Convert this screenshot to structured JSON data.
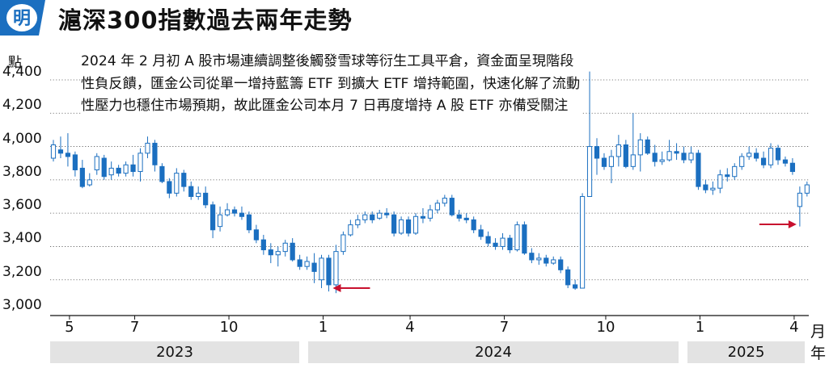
{
  "header": {
    "badge_text": "明",
    "title": "滬深300指數過去兩年走勢"
  },
  "colors": {
    "brand_blue": "#1b6fc0",
    "candle_up": "#1b6fc0",
    "candle_down_fill": "#ffffff",
    "arrow": "#c8102e",
    "year_band": "#e3e3e3"
  },
  "chart_data": {
    "type": "candlestick",
    "title": "滬深300指數過去兩年走勢",
    "ylabel": "點",
    "ylim": [
      3000,
      4500
    ],
    "yticks": [
      "3,000",
      "3,200",
      "3,400",
      "3,600",
      "3,800",
      "4,000",
      "4,200",
      "4,400"
    ],
    "grid": "horizontal-dotted",
    "x_tick_labels": [
      "5",
      "7",
      "10",
      "1",
      "4",
      "7",
      "10",
      "1",
      "4"
    ],
    "x_unit": "月",
    "year_unit": "年",
    "year_labels": [
      "2023",
      "2024",
      "2025"
    ],
    "annotation": "2024 年 2 月初 A 股市場連續調整後觸發雪球等衍生工具平倉，資金面呈現階段性負反饋，匯金公司從單一增持藍籌 ETF 到擴大 ETF 增持範圍，快速化解了流動性壓力也穩住市場預期，故此匯金公司本月 7 日再度增持 A 股 ETF 亦備受關注",
    "week_start_label": "2023-04",
    "candles": [
      [
        3930,
        4010,
        3950,
        4040,
        3910
      ],
      [
        3980,
        3960,
        4000,
        4060,
        3930
      ],
      [
        3960,
        3940,
        3960,
        4080,
        3880
      ],
      [
        3950,
        3860,
        3880,
        3970,
        3820
      ],
      [
        3870,
        3760,
        3900,
        3920,
        3750
      ],
      [
        3770,
        3800,
        3820,
        3840,
        3760
      ],
      [
        3860,
        3940,
        3880,
        3960,
        3830
      ],
      [
        3930,
        3820,
        3930,
        3950,
        3800
      ],
      [
        3830,
        3870,
        3900,
        3910,
        3800
      ],
      [
        3870,
        3840,
        3870,
        3890,
        3820
      ],
      [
        3840,
        3890,
        3900,
        3910,
        3820
      ],
      [
        3890,
        3850,
        3900,
        3950,
        3820
      ],
      [
        3850,
        3960,
        3980,
        3990,
        3790
      ],
      [
        3960,
        4020,
        4030,
        4060,
        3930
      ],
      [
        4020,
        3890,
        4020,
        4040,
        3850
      ],
      [
        3880,
        3790,
        3890,
        3900,
        3780
      ],
      [
        3790,
        3720,
        3800,
        3810,
        3690
      ],
      [
        3720,
        3840,
        3860,
        3870,
        3700
      ],
      [
        3840,
        3760,
        3850,
        3860,
        3730
      ],
      [
        3760,
        3700,
        3780,
        3790,
        3680
      ],
      [
        3700,
        3720,
        3740,
        3760,
        3680
      ],
      [
        3720,
        3650,
        3740,
        3760,
        3630
      ],
      [
        3650,
        3500,
        3660,
        3670,
        3450
      ],
      [
        3520,
        3590,
        3600,
        3640,
        3490
      ],
      [
        3590,
        3620,
        3630,
        3660,
        3580
      ],
      [
        3620,
        3600,
        3630,
        3640,
        3580
      ],
      [
        3600,
        3580,
        3620,
        3640,
        3560
      ],
      [
        3590,
        3500,
        3600,
        3610,
        3480
      ],
      [
        3500,
        3440,
        3510,
        3530,
        3420
      ],
      [
        3440,
        3380,
        3460,
        3470,
        3350
      ],
      [
        3380,
        3350,
        3400,
        3420,
        3300
      ],
      [
        3350,
        3370,
        3380,
        3400,
        3280
      ],
      [
        3370,
        3420,
        3430,
        3440,
        3340
      ],
      [
        3420,
        3320,
        3430,
        3450,
        3310
      ],
      [
        3320,
        3280,
        3340,
        3350,
        3260
      ],
      [
        3280,
        3310,
        3320,
        3340,
        3260
      ],
      [
        3300,
        3250,
        3350,
        3360,
        3180
      ],
      [
        3200,
        3330,
        3330,
        3350,
        3150
      ],
      [
        3330,
        3170,
        3340,
        3350,
        3130
      ],
      [
        3170,
        3370,
        3390,
        3410,
        3120
      ],
      [
        3370,
        3470,
        3470,
        3490,
        3350
      ],
      [
        3470,
        3530,
        3540,
        3560,
        3460
      ],
      [
        3530,
        3560,
        3570,
        3590,
        3510
      ],
      [
        3560,
        3590,
        3600,
        3610,
        3540
      ],
      [
        3590,
        3560,
        3600,
        3610,
        3540
      ],
      [
        3570,
        3600,
        3600,
        3620,
        3560
      ],
      [
        3600,
        3590,
        3610,
        3630,
        3570
      ],
      [
        3590,
        3480,
        3600,
        3610,
        3460
      ],
      [
        3480,
        3560,
        3560,
        3580,
        3470
      ],
      [
        3560,
        3480,
        3570,
        3580,
        3460
      ],
      [
        3480,
        3580,
        3590,
        3600,
        3470
      ],
      [
        3580,
        3570,
        3610,
        3630,
        3540
      ],
      [
        3570,
        3620,
        3630,
        3650,
        3550
      ],
      [
        3620,
        3660,
        3670,
        3680,
        3600
      ],
      [
        3660,
        3690,
        3700,
        3710,
        3640
      ],
      [
        3690,
        3590,
        3700,
        3710,
        3580
      ],
      [
        3590,
        3570,
        3610,
        3620,
        3550
      ],
      [
        3570,
        3560,
        3590,
        3600,
        3540
      ],
      [
        3560,
        3500,
        3570,
        3580,
        3480
      ],
      [
        3500,
        3460,
        3510,
        3530,
        3440
      ],
      [
        3460,
        3420,
        3480,
        3490,
        3400
      ],
      [
        3420,
        3400,
        3440,
        3450,
        3380
      ],
      [
        3400,
        3450,
        3470,
        3480,
        3380
      ],
      [
        3450,
        3380,
        3460,
        3470,
        3360
      ],
      [
        3380,
        3530,
        3540,
        3550,
        3370
      ],
      [
        3530,
        3360,
        3540,
        3550,
        3350
      ],
      [
        3360,
        3320,
        3380,
        3390,
        3300
      ],
      [
        3320,
        3330,
        3350,
        3360,
        3290
      ],
      [
        3330,
        3300,
        3340,
        3350,
        3280
      ],
      [
        3300,
        3320,
        3330,
        3340,
        3290
      ],
      [
        3320,
        3260,
        3330,
        3340,
        3240
      ],
      [
        3260,
        3170,
        3270,
        3280,
        3150
      ],
      [
        3170,
        3150,
        3190,
        3200,
        3140
      ],
      [
        3150,
        3700,
        3700,
        3720,
        3150
      ],
      [
        3700,
        4000,
        4020,
        4450,
        3790
      ],
      [
        4000,
        3930,
        4030,
        4050,
        3830
      ],
      [
        3930,
        3880,
        3950,
        3960,
        3860
      ],
      [
        3880,
        3940,
        3960,
        3980,
        3780
      ],
      [
        3940,
        4010,
        4020,
        4070,
        3880
      ],
      [
        4010,
        3880,
        4020,
        4040,
        3870
      ],
      [
        3880,
        3950,
        4010,
        4200,
        3860
      ],
      [
        3950,
        4040,
        4050,
        4080,
        3850
      ],
      [
        4040,
        3960,
        4050,
        4060,
        3950
      ],
      [
        3960,
        3910,
        4000,
        4010,
        3880
      ],
      [
        3910,
        3920,
        3960,
        3970,
        3890
      ],
      [
        3920,
        3970,
        3990,
        4040,
        3910
      ],
      [
        3970,
        3960,
        3990,
        4020,
        3920
      ],
      [
        3960,
        3920,
        3980,
        4000,
        3900
      ],
      [
        3920,
        3960,
        3970,
        4000,
        3900
      ],
      [
        3960,
        3760,
        3970,
        3980,
        3740
      ],
      [
        3770,
        3740,
        3790,
        3800,
        3720
      ],
      [
        3740,
        3750,
        3780,
        3790,
        3710
      ],
      [
        3750,
        3830,
        3840,
        3860,
        3720
      ],
      [
        3830,
        3820,
        3860,
        3870,
        3790
      ],
      [
        3820,
        3880,
        3890,
        3900,
        3800
      ],
      [
        3880,
        3940,
        3950,
        3960,
        3860
      ],
      [
        3940,
        3960,
        3980,
        4000,
        3920
      ],
      [
        3960,
        3930,
        3980,
        3990,
        3910
      ],
      [
        3930,
        3890,
        3960,
        3970,
        3870
      ],
      [
        3890,
        3990,
        4000,
        4020,
        3870
      ],
      [
        3990,
        3920,
        4000,
        4010,
        3890
      ],
      [
        3920,
        3900,
        3930,
        3940,
        3880
      ],
      [
        3900,
        3850,
        3910,
        3930,
        3830
      ],
      [
        3640,
        3720,
        3740,
        3760,
        3520
      ],
      [
        3720,
        3770,
        3780,
        3790,
        3700
      ]
    ],
    "markers": [
      {
        "candle_index": 38,
        "direction": "left-pointing",
        "meaning": "2024 年 2 月初"
      },
      {
        "candle_index": 103,
        "direction": "right-pointing",
        "meaning": "本月 7 日"
      }
    ]
  }
}
